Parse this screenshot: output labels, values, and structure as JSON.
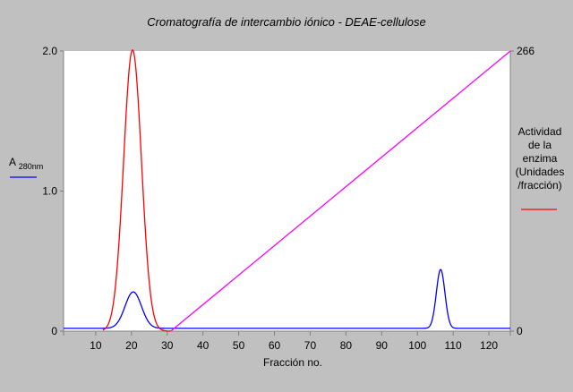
{
  "chart_data": {
    "type": "line",
    "title": "Cromatografía de intercambio iónico - DEAE-cellulose",
    "xlabel": "Fracción no.",
    "xlim": [
      1,
      126
    ],
    "x_ticks": [
      10,
      20,
      30,
      40,
      50,
      60,
      70,
      80,
      90,
      100,
      110,
      120
    ],
    "left_axis": {
      "label_main": "A",
      "label_sub": "280nm",
      "ylim": [
        0,
        2.0
      ],
      "ticks": [
        {
          "value": 0,
          "label": "0"
        },
        {
          "value": 1.0,
          "label": "1.0"
        },
        {
          "value": 2.0,
          "label": "2.0"
        }
      ]
    },
    "right_axis": {
      "label_lines": [
        "Actividad",
        "de la",
        "enzima",
        "(Unidades",
        "/fracción)"
      ],
      "ylim": [
        0,
        266
      ],
      "ticks": [
        {
          "value": 0,
          "label": "0"
        },
        {
          "value": 266,
          "label": "266"
        }
      ]
    },
    "series": [
      {
        "key": "absorbance",
        "axis": "left",
        "color": "#0000ff",
        "kind": "gaussian_peaks",
        "baseline": 0.02,
        "peaks": [
          {
            "center": 20.5,
            "height": 0.26,
            "sigma": 2.3
          },
          {
            "center": 106.5,
            "height": 0.42,
            "sigma": 1.2
          }
        ]
      },
      {
        "key": "enzyme_activity",
        "axis": "right",
        "color": "#ff0000",
        "kind": "gaussian_peaks",
        "baseline": 0,
        "x_range": [
          12,
          31
        ],
        "peaks": [
          {
            "center": 20.3,
            "height": 267,
            "sigma": 2.5
          }
        ]
      },
      {
        "key": "salt_gradient",
        "axis": "right",
        "color": "#ff00ff",
        "kind": "segments",
        "points": [
          [
            31,
            0
          ],
          [
            126,
            266
          ]
        ]
      }
    ]
  }
}
